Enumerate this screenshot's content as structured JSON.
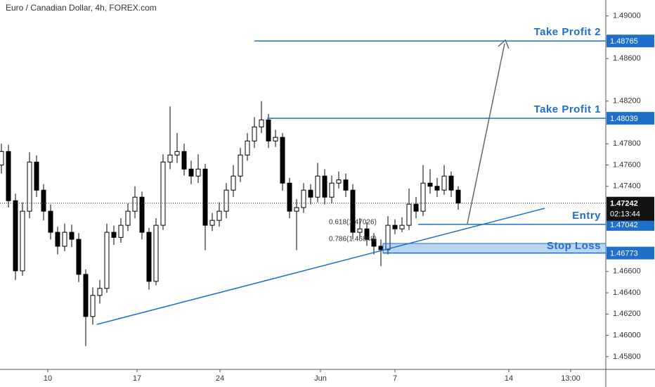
{
  "chart_data": {
    "type": "candlestick",
    "title": "Euro / Canadian Dollar, 4h, FOREX.com",
    "up_color": "#ffffff",
    "down_color": "#000000",
    "level_color": "#1e6fcc",
    "open": [
      1.476,
      1.47727,
      1.47265,
      1.46606,
      1.47166,
      1.47628,
      1.47364,
      1.47166,
      1.46968,
      1.46837,
      1.46968,
      1.46902,
      1.46573,
      1.46177,
      1.46375,
      1.46441,
      1.46968,
      1.4692,
      1.47034,
      1.47166,
      1.47298,
      1.46968,
      1.46507,
      1.47034,
      1.47628,
      1.47694,
      1.47727,
      1.47562,
      1.47496,
      1.47562,
      1.47034,
      1.4708,
      1.47166,
      1.47364,
      1.47496,
      1.47694,
      1.47826,
      1.47958,
      1.48024,
      1.47826,
      1.4786,
      1.4743,
      1.47166,
      1.472,
      1.47364,
      1.47298,
      1.47496,
      1.47298,
      1.4743,
      1.4746,
      1.47364,
      1.46968,
      1.47,
      1.46902,
      1.46837,
      1.46804,
      1.47034,
      1.47,
      1.47034,
      1.47232,
      1.47166,
      1.4743,
      1.474,
      1.47364,
      1.47496,
      1.47364
    ],
    "high": [
      1.478,
      1.4779,
      1.4733,
      1.4725,
      1.4772,
      1.4769,
      1.4742,
      1.4723,
      1.4702,
      1.4705,
      1.4704,
      1.4696,
      1.4662,
      1.4645,
      1.4652,
      1.4705,
      1.4703,
      1.471,
      1.4724,
      1.474,
      1.4735,
      1.4701,
      1.471,
      1.477,
      1.4815,
      1.479,
      1.478,
      1.4764,
      1.477,
      1.4761,
      1.4715,
      1.4725,
      1.4743,
      1.476,
      1.4776,
      1.479,
      1.4805,
      1.482,
      1.4808,
      1.4793,
      1.479,
      1.4748,
      1.4728,
      1.4743,
      1.4742,
      1.4762,
      1.4756,
      1.475,
      1.4754,
      1.4752,
      1.4742,
      1.471,
      1.4706,
      1.4696,
      1.469,
      1.4712,
      1.4709,
      1.4711,
      1.4738,
      1.473,
      1.476,
      1.4756,
      1.4748,
      1.476,
      1.4754,
      1.474
    ],
    "low": [
      1.4752,
      1.472,
      1.4652,
      1.4656,
      1.471,
      1.473,
      1.4708,
      1.469,
      1.4676,
      1.4679,
      1.4683,
      1.465,
      1.459,
      1.461,
      1.463,
      1.464,
      1.4685,
      1.4687,
      1.4698,
      1.471,
      1.469,
      1.4643,
      1.4647,
      1.4699,
      1.4756,
      1.4762,
      1.475,
      1.4742,
      1.4743,
      1.468,
      1.4698,
      1.4702,
      1.471,
      1.473,
      1.4744,
      1.4764,
      1.4776,
      1.479,
      1.4776,
      1.4777,
      1.4736,
      1.471,
      1.468,
      1.4715,
      1.4723,
      1.4725,
      1.4723,
      1.4724,
      1.4738,
      1.473,
      1.469,
      1.4692,
      1.4684,
      1.4676,
      1.4665,
      1.4676,
      1.4695,
      1.4697,
      1.4699,
      1.471,
      1.4712,
      1.4733,
      1.473,
      1.4732,
      1.473,
      1.4718
    ],
    "close": [
      1.47727,
      1.47265,
      1.46606,
      1.47166,
      1.47628,
      1.47364,
      1.47166,
      1.46968,
      1.46837,
      1.46968,
      1.46902,
      1.46573,
      1.46177,
      1.46375,
      1.46441,
      1.46968,
      1.4692,
      1.47034,
      1.47166,
      1.47298,
      1.46968,
      1.46507,
      1.47034,
      1.47628,
      1.47694,
      1.47727,
      1.47562,
      1.47496,
      1.47562,
      1.47034,
      1.4708,
      1.47166,
      1.47364,
      1.47496,
      1.47694,
      1.47826,
      1.47958,
      1.48024,
      1.47826,
      1.4786,
      1.4743,
      1.47166,
      1.472,
      1.47364,
      1.47298,
      1.47496,
      1.47298,
      1.4743,
      1.4746,
      1.47364,
      1.46968,
      1.47,
      1.46902,
      1.46837,
      1.46804,
      1.47034,
      1.47,
      1.47034,
      1.47232,
      1.47166,
      1.4743,
      1.474,
      1.47364,
      1.47496,
      1.47364,
      1.47242
    ],
    "xlim": [
      -0.2,
      86
    ],
    "xticks": [
      {
        "value": 6.6,
        "label": "10"
      },
      {
        "value": 19.3,
        "label": "17"
      },
      {
        "value": 31.1,
        "label": "24"
      },
      {
        "value": 45.4,
        "label": "Jun"
      },
      {
        "value": 56,
        "label": "7"
      },
      {
        "value": 72.2,
        "label": "14"
      },
      {
        "value": 81,
        "label": "13:00"
      }
    ],
    "ylim": [
      1.4568,
      1.4915
    ],
    "yticks": [
      {
        "value": 1.49,
        "label": "1.49000"
      },
      {
        "value": 1.486,
        "label": "1.48600"
      },
      {
        "value": 1.482,
        "label": "1.48200"
      },
      {
        "value": 1.478,
        "label": "1.47800"
      },
      {
        "value": 1.476,
        "label": "1.47600"
      },
      {
        "value": 1.474,
        "label": "1.47400"
      },
      {
        "value": 1.466,
        "label": "1.46600"
      },
      {
        "value": 1.464,
        "label": "1.46400"
      },
      {
        "value": 1.462,
        "label": "1.46200"
      },
      {
        "value": 1.46,
        "label": "1.46000"
      },
      {
        "value": 1.458,
        "label": "1.45800"
      }
    ],
    "levels": [
      {
        "name": "Take Profit 2",
        "value": 1.48765
      },
      {
        "name": "Take Profit 1",
        "value": 1.48039
      },
      {
        "name": "Entry",
        "value": 1.47042
      },
      {
        "name": "Stop Loss",
        "value": 1.46773,
        "zone_to": 1.46863
      }
    ],
    "last_price": 1.47242,
    "countdown": "02:13:44",
    "fib_labels": [
      "0.618(1.47026)",
      "0.786(1.46848)"
    ]
  }
}
